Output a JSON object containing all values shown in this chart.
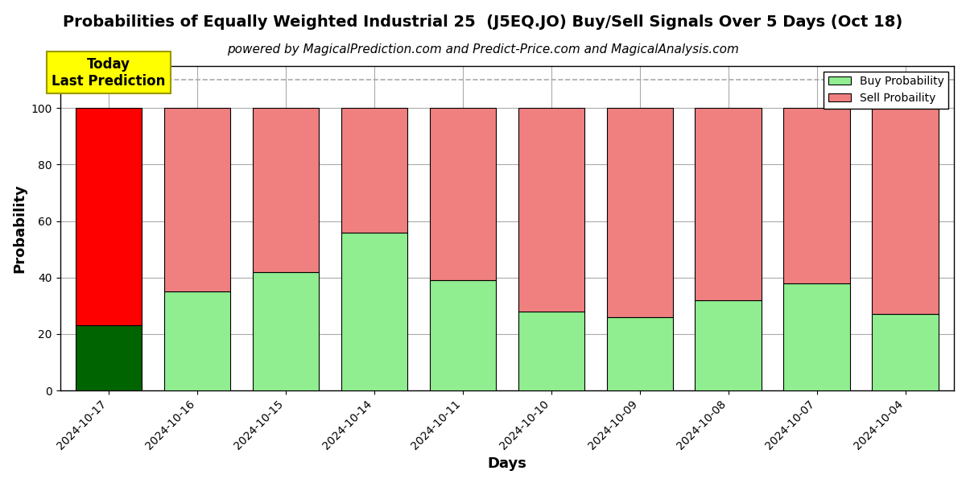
{
  "title": "Probabilities of Equally Weighted Industrial 25  (J5EQ.JO) Buy/Sell Signals Over 5 Days (Oct 18)",
  "subtitle": "powered by MagicalPrediction.com and Predict-Price.com and MagicalAnalysis.com",
  "xlabel": "Days",
  "ylabel": "Probability",
  "categories": [
    "2024-10-17",
    "2024-10-16",
    "2024-10-15",
    "2024-10-14",
    "2024-10-11",
    "2024-10-10",
    "2024-10-09",
    "2024-10-08",
    "2024-10-07",
    "2024-10-04"
  ],
  "buy_values": [
    23,
    35,
    42,
    56,
    39,
    28,
    26,
    32,
    38,
    27
  ],
  "sell_values": [
    77,
    65,
    58,
    44,
    61,
    72,
    74,
    68,
    62,
    73
  ],
  "buy_color_today": "#006400",
  "sell_color_today": "#FF0000",
  "buy_color_normal": "#90EE90",
  "sell_color_normal": "#F08080",
  "today_label_text": "Today\nLast Prediction",
  "today_label_bg": "#FFFF00",
  "dashed_line_y": 110,
  "ylim": [
    0,
    115
  ],
  "yticks": [
    0,
    20,
    40,
    60,
    80,
    100
  ],
  "legend_buy": "Buy Probability",
  "legend_sell": "Sell Probaility",
  "bar_edgecolor": "#000000",
  "bar_linewidth": 0.8,
  "background_color": "#ffffff",
  "grid_color": "#aaaaaa",
  "title_fontsize": 14,
  "subtitle_fontsize": 11,
  "axis_label_fontsize": 13,
  "tick_fontsize": 10
}
